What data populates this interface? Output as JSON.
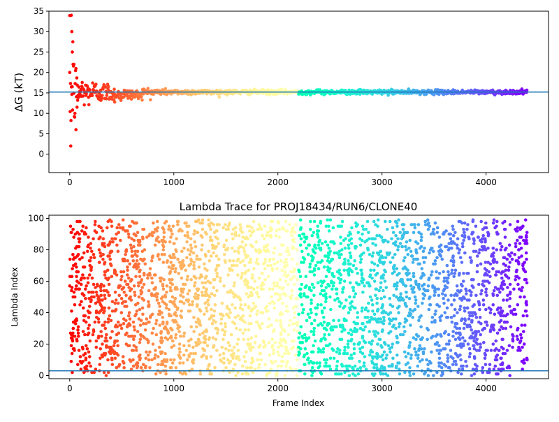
{
  "chart_data": [
    {
      "type": "scatter",
      "title": "",
      "xlabel": "",
      "ylabel": "ΔG (kT)",
      "xlim": [
        -200,
        4600
      ],
      "ylim": [
        -4.5,
        35
      ],
      "xticks": [
        0,
        1000,
        2000,
        3000,
        4000
      ],
      "yticks": [
        0,
        5,
        10,
        15,
        20,
        25,
        30,
        35
      ],
      "x_range": [
        0,
        4395
      ],
      "color_map": "rainbow (red → blue)",
      "reference_line": {
        "y": 15.2,
        "color": "#1f77b4"
      },
      "early_scatter": {
        "frames": [
          0,
          10,
          15,
          20,
          25,
          30,
          40,
          50,
          60,
          70
        ],
        "values": [
          20,
          2.0,
          34,
          30,
          25,
          27.5,
          22,
          10,
          6,
          11.5
        ]
      },
      "convergence": {
        "frames": [
          0,
          100,
          300,
          600,
          1000,
          4395
        ],
        "spread": [
          15,
          4,
          2.5,
          1.2,
          0.6,
          0.5
        ],
        "center": 15.2
      }
    },
    {
      "type": "scatter",
      "title": "Lambda Trace for PROJ18434/RUN6/CLONE40",
      "xlabel": "Frame Index",
      "ylabel": "Lambda Index",
      "xlim": [
        -200,
        4600
      ],
      "ylim": [
        -2,
        102
      ],
      "xticks": [
        0,
        1000,
        2000,
        3000,
        4000
      ],
      "yticks": [
        0,
        20,
        40,
        60,
        80,
        100
      ],
      "x_range": [
        0,
        4395
      ],
      "y_range": [
        0,
        99
      ],
      "color_map": "rainbow (red → violet)",
      "reference_line": {
        "y": 3,
        "color": "#1f77b4"
      }
    }
  ]
}
